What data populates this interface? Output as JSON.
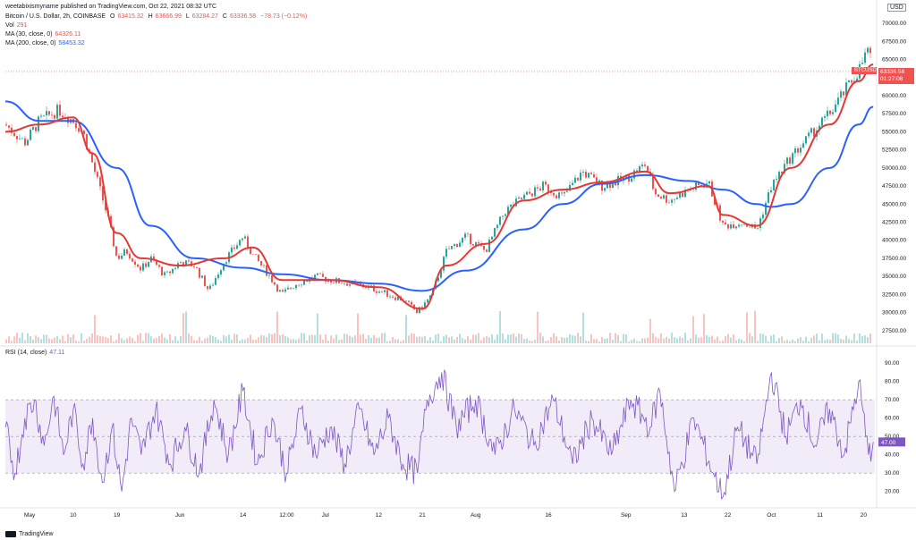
{
  "header": {
    "user_line": "weetabixismyname published on TradingView.com, Oct 22, 2021 08:32 UTC",
    "symbol_desc": "Bitcoin / U.S. Dollar, 2h, COINBASE",
    "o_label": "O",
    "o_value": "63415.32",
    "h_label": "H",
    "h_value": "63666.99",
    "l_label": "L",
    "l_value": "63284.27",
    "c_label": "C",
    "c_value": "63336.58",
    "change": "−78.73 (−0.12%)",
    "vol_label": "Vol",
    "vol_value": "291",
    "ma30_label": "MA (30, close, 0)",
    "ma30_value": "64326.11",
    "ma200_label": "MA (200, close, 0)",
    "ma200_value": "58453.32",
    "rsi_label": "RSI (14, close)",
    "rsi_value": "47.11"
  },
  "currency": "USD",
  "price_tag": {
    "symbol": "BTCUSD",
    "price": "63336.58",
    "countdown": "01:27:08"
  },
  "footer": {
    "brand": "TradingView"
  },
  "colors": {
    "up": "#26a69a",
    "down": "#ef5350",
    "ma30": "#e53935",
    "ma200": "#2962ff",
    "rsi": "#7e57c2",
    "rsi_band": "#ede7f6"
  },
  "chart_data": [
    {
      "type": "line",
      "title": "Bitcoin / U.S. Dollar, 2h, COINBASE",
      "x_ticks": [
        "May",
        "10",
        "19",
        "Jun",
        "14",
        "12:00",
        "Jul",
        "12",
        "21",
        "Aug",
        "16",
        "Sep",
        "13",
        "22",
        "Oct",
        "11",
        "20"
      ],
      "y_ticks": [
        27500,
        30000,
        32500,
        35000,
        37500,
        40000,
        42500,
        45000,
        47500,
        50000,
        52500,
        55000,
        57500,
        60000,
        62500,
        65000,
        67500,
        70000
      ],
      "ylim": [
        25500,
        70500
      ],
      "series": [
        {
          "name": "Price (close)",
          "x": [
            "Apr 26",
            "Apr 30",
            "May 3",
            "May 7",
            "May 10",
            "May 12",
            "May 14",
            "May 17",
            "May 19",
            "May 21",
            "May 24",
            "May 26",
            "May 29",
            "Jun 1",
            "Jun 4",
            "Jun 7",
            "Jun 10",
            "Jun 14",
            "Jun 16",
            "Jun 19",
            "Jun 22",
            "Jun 25",
            "Jun 29",
            "Jul 2",
            "Jul 6",
            "Jul 10",
            "Jul 14",
            "Jul 17",
            "Jul 20",
            "Jul 23",
            "Jul 26",
            "Jul 30",
            "Aug 3",
            "Aug 7",
            "Aug 11",
            "Aug 15",
            "Aug 19",
            "Aug 23",
            "Aug 27",
            "Sep 1",
            "Sep 5",
            "Sep 7",
            "Sep 10",
            "Sep 14",
            "Sep 18",
            "Sep 21",
            "Sep 25",
            "Sep 28",
            "Oct 1",
            "Oct 5",
            "Oct 9",
            "Oct 13",
            "Oct 16",
            "Oct 19",
            "Oct 21",
            "Oct 22"
          ],
          "values": [
            56000,
            53500,
            56500,
            58000,
            56500,
            55000,
            50500,
            43500,
            37500,
            38500,
            36000,
            37500,
            35000,
            37000,
            36500,
            33000,
            37000,
            40500,
            38000,
            35500,
            32500,
            34000,
            35000,
            34500,
            34000,
            33500,
            32500,
            31800,
            30000,
            32500,
            38500,
            40500,
            38500,
            44000,
            46000,
            47500,
            46000,
            49500,
            47500,
            48500,
            50500,
            46500,
            45500,
            47000,
            48000,
            42000,
            42500,
            41500,
            47500,
            51500,
            54500,
            57500,
            60500,
            63500,
            66500,
            63336
          ]
        },
        {
          "name": "MA (30, close, 0)",
          "x": [
            "Apr 26",
            "May 3",
            "May 10",
            "May 14",
            "May 19",
            "May 24",
            "Jun 1",
            "Jun 10",
            "Jun 16",
            "Jun 22",
            "Jul 2",
            "Jul 12",
            "Jul 21",
            "Jul 26",
            "Aug 3",
            "Aug 11",
            "Aug 19",
            "Aug 27",
            "Sep 5",
            "Sep 10",
            "Sep 18",
            "Sep 21",
            "Sep 28",
            "Oct 5",
            "Oct 13",
            "Oct 19",
            "Oct 22"
          ],
          "values": [
            55000,
            56000,
            57000,
            52000,
            41000,
            37500,
            36500,
            37500,
            39000,
            34500,
            34500,
            33500,
            30500,
            36500,
            39500,
            45500,
            47000,
            48000,
            49500,
            46500,
            47500,
            43500,
            42000,
            50000,
            56000,
            62000,
            64326
          ]
        },
        {
          "name": "MA (200, close, 0)",
          "x": [
            "Apr 26",
            "May 3",
            "May 10",
            "May 19",
            "May 26",
            "Jun 4",
            "Jun 14",
            "Jun 22",
            "Jul 2",
            "Jul 12",
            "Jul 21",
            "Jul 30",
            "Aug 11",
            "Aug 19",
            "Aug 27",
            "Sep 5",
            "Sep 14",
            "Sep 21",
            "Sep 28",
            "Oct 1",
            "Oct 5",
            "Oct 13",
            "Oct 19",
            "Oct 22"
          ],
          "values": [
            59200,
            56500,
            56500,
            50000,
            42000,
            37500,
            36200,
            35300,
            34500,
            34000,
            33000,
            35800,
            41500,
            45000,
            47800,
            49000,
            48200,
            47000,
            45000,
            44600,
            45000,
            50000,
            56000,
            58453
          ]
        }
      ]
    },
    {
      "type": "line",
      "title": "RSI (14, close)",
      "y_ticks": [
        20,
        30,
        40,
        50,
        60,
        70,
        80,
        90
      ],
      "ylim": [
        14,
        94
      ],
      "bands": [
        30,
        50,
        70
      ],
      "series": [
        {
          "name": "RSI (14, close)",
          "x": [
            "Apr 26",
            "Apr 28",
            "Apr 30",
            "May 2",
            "May 4",
            "May 6",
            "May 8",
            "May 10",
            "May 12",
            "May 14",
            "May 16",
            "May 18",
            "May 20",
            "May 22",
            "May 24",
            "May 27",
            "May 30",
            "Jun 2",
            "Jun 5",
            "Jun 8",
            "Jun 11",
            "Jun 14",
            "Jun 17",
            "Jun 20",
            "Jun 23",
            "Jun 26",
            "Jun 29",
            "Jul 2",
            "Jul 5",
            "Jul 8",
            "Jul 11",
            "Jul 14",
            "Jul 17",
            "Jul 20",
            "Jul 22",
            "Jul 25",
            "Jul 28",
            "Aug 1",
            "Aug 5",
            "Aug 9",
            "Aug 13",
            "Aug 17",
            "Aug 21",
            "Aug 25",
            "Aug 29",
            "Sep 2",
            "Sep 6",
            "Sep 8",
            "Sep 11",
            "Sep 15",
            "Sep 19",
            "Sep 21",
            "Sep 24",
            "Sep 28",
            "Oct 1",
            "Oct 4",
            "Oct 7",
            "Oct 10",
            "Oct 13",
            "Oct 16",
            "Oct 19",
            "Oct 21",
            "Oct 22"
          ],
          "values": [
            55,
            30,
            60,
            70,
            45,
            72,
            40,
            65,
            35,
            60,
            25,
            55,
            20,
            60,
            40,
            65,
            35,
            55,
            30,
            70,
            40,
            75,
            35,
            60,
            30,
            65,
            40,
            55,
            35,
            65,
            40,
            60,
            35,
            30,
            70,
            85,
            55,
            70,
            40,
            65,
            45,
            70,
            35,
            60,
            40,
            70,
            55,
            75,
            20,
            60,
            30,
            17,
            55,
            35,
            85,
            50,
            70,
            45,
            65,
            40,
            80,
            40,
            47
          ]
        }
      ]
    }
  ]
}
